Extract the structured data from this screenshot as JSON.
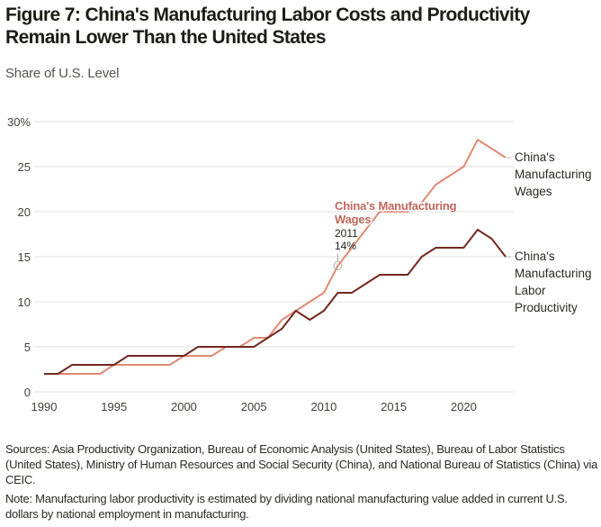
{
  "title": "Figure 7: China's Manufacturing Labor Costs and Productivity Remain Lower Than the United States",
  "subtitle": "Share of U.S. Level",
  "colors": {
    "wages": "#e08a74",
    "productivity": "#73291f",
    "annotation": "#c0675a",
    "grid": "#e2e2e2",
    "text": "#3f3f3a"
  },
  "chart_data": {
    "type": "line",
    "title": "Figure 7: China's Manufacturing Labor Costs and Productivity Remain Lower Than the United States",
    "ylabel": "Share of U.S. Level",
    "xlabel": "",
    "x": [
      1990,
      1991,
      1992,
      1993,
      1994,
      1995,
      1996,
      1997,
      1998,
      1999,
      2000,
      2001,
      2002,
      2003,
      2004,
      2005,
      2006,
      2007,
      2008,
      2009,
      2010,
      2011,
      2012,
      2013,
      2014,
      2015,
      2016,
      2017,
      2018,
      2019,
      2020,
      2021,
      2022,
      2023
    ],
    "series": [
      {
        "name": "China's Manufacturing Wages",
        "color": "#e08a74",
        "values": [
          2,
          2,
          2,
          2,
          2,
          3,
          3,
          3,
          3,
          3,
          4,
          4,
          4,
          5,
          5,
          6,
          6,
          8,
          9,
          10,
          11,
          14,
          16,
          18,
          20,
          20,
          20,
          21,
          23,
          24,
          25,
          28,
          27,
          26
        ]
      },
      {
        "name": "China's Manufacturing Labor Productivity",
        "color": "#73291f",
        "values": [
          2,
          2,
          3,
          3,
          3,
          3,
          4,
          4,
          4,
          4,
          4,
          5,
          5,
          5,
          5,
          5,
          6,
          7,
          9,
          8,
          9,
          11,
          11,
          12,
          13,
          13,
          13,
          15,
          16,
          16,
          16,
          18,
          17,
          15
        ]
      }
    ],
    "xlim": [
      1990,
      2023
    ],
    "ylim": [
      0,
      30
    ],
    "x_ticks": [
      "1990",
      "1995",
      "2000",
      "2005",
      "2010",
      "2015",
      "2020"
    ],
    "x_tick_values": [
      1990,
      1995,
      2000,
      2005,
      2010,
      2015,
      2020
    ],
    "y_ticks": [
      "0",
      "5",
      "10",
      "15",
      "20",
      "25",
      "30%"
    ],
    "y_tick_values": [
      0,
      5,
      10,
      15,
      20,
      25,
      30
    ],
    "grid": true,
    "legend": "direct labels at right end of lines",
    "series_labels": [
      [
        "China's",
        "Manufacturing",
        "Wages"
      ],
      [
        "China's",
        "Manufacturing",
        "Labor",
        "Productivity"
      ]
    ],
    "annotation": {
      "series": "China's Manufacturing Wages",
      "title_lines": [
        "China's Manufacturing",
        "Wages"
      ],
      "x": 2011,
      "y": 14,
      "year_label": "2011",
      "value_label": "14%"
    }
  },
  "notes": {
    "sources": "Sources: Asia Productivity Organization, Bureau of Economic Analysis (United States), Bureau of Labor Statistics (United States), Ministry of Human Resources and Social Security (China), and National Bureau of Statistics (China) via CEIC.",
    "note": "Note: Manufacturing labor productivity is estimated by dividing national manufacturing value added in current U.S. dollars by national employment in manufacturing."
  }
}
